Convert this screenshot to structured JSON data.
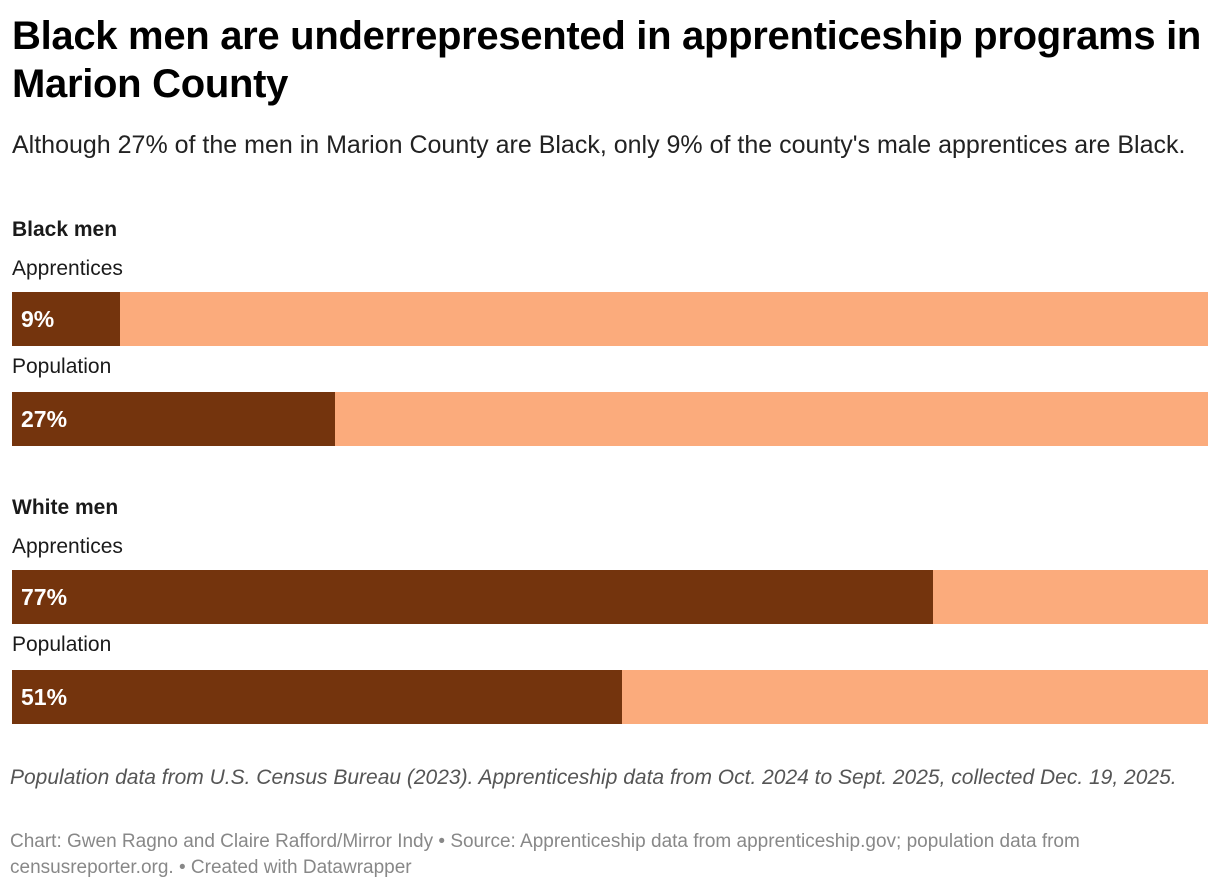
{
  "chart_data": {
    "type": "bar",
    "orientation": "horizontal",
    "stacked": true,
    "title": "Black men are underrepresented in apprenticeship programs in Marion County",
    "subtitle": "Although 27% of the men in Marion County are Black, only 9% of the county's male apprentices are Black.",
    "xlim": [
      0,
      100
    ],
    "unit": "%",
    "groups": [
      {
        "name": "Black men",
        "bars": [
          {
            "label": "Apprentices",
            "value": 9,
            "value_label": "9%"
          },
          {
            "label": "Population",
            "value": 27,
            "value_label": "27%"
          }
        ]
      },
      {
        "name": "White men",
        "bars": [
          {
            "label": "Apprentices",
            "value": 77,
            "value_label": "77%"
          },
          {
            "label": "Population",
            "value": 51,
            "value_label": "51%"
          }
        ]
      }
    ],
    "colors": {
      "value": "#74340d",
      "remainder": "#fbab7c"
    },
    "notes": "Population data from U.S. Census Bureau (2023). Apprenticeship data from Oct. 2024 to Sept. 2025, collected Dec. 19, 2025.",
    "byline": "Chart: Gwen Ragno and Claire Rafford/Mirror Indy • Source: Apprenticeship data from apprenticeship.gov; population data from censusreporter.org. • Created with Datawrapper"
  }
}
